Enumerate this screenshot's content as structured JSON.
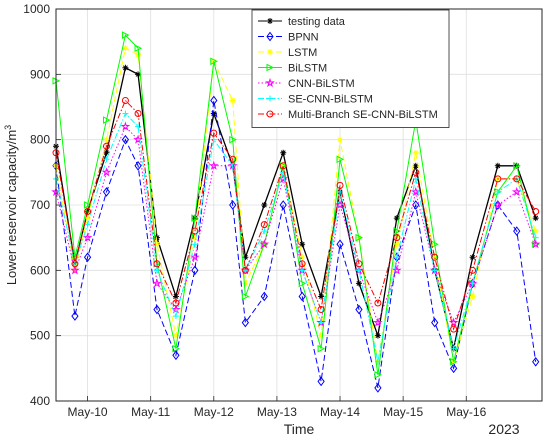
{
  "chart_data": {
    "type": "line",
    "title": "",
    "xlabel": "Time",
    "ylabel": "Lower reservoir capacity/m",
    "ylabel_superscript": "3",
    "year_label": "2023",
    "xlim": [
      0,
      7.7
    ],
    "ylim": [
      400,
      1000
    ],
    "xticks": [
      0.5,
      1.5,
      2.5,
      3.5,
      4.5,
      5.5,
      6.5
    ],
    "xtick_labels": [
      "May-10",
      "May-11",
      "May-12",
      "May-13",
      "May-14",
      "May-15",
      "May-16"
    ],
    "yticks": [
      400,
      500,
      600,
      700,
      800,
      900,
      1000
    ],
    "ytick_labels": [
      "400",
      "500",
      "600",
      "700",
      "800",
      "900",
      "1000"
    ],
    "grid": true,
    "legend_position": "top-right",
    "x": [
      0,
      0.3,
      0.5,
      0.8,
      1.1,
      1.3,
      1.6,
      1.9,
      2.2,
      2.5,
      2.8,
      3.0,
      3.3,
      3.6,
      3.9,
      4.2,
      4.5,
      4.8,
      5.1,
      5.4,
      5.7,
      6.0,
      6.3,
      6.6,
      7.0,
      7.3,
      7.6
    ],
    "series": [
      {
        "name": "testing data",
        "color": "#000000",
        "style": "solid",
        "marker": "asterisk",
        "values": [
          790,
          610,
          690,
          780,
          910,
          900,
          650,
          560,
          680,
          840,
          760,
          620,
          700,
          780,
          640,
          560,
          720,
          580,
          500,
          680,
          760,
          600,
          480,
          620,
          760,
          760,
          680
        ]
      },
      {
        "name": "BPNN",
        "color": "#0000ff",
        "style": "dashed",
        "marker": "diamond",
        "values": [
          760,
          530,
          620,
          720,
          800,
          760,
          540,
          470,
          600,
          860,
          700,
          520,
          560,
          700,
          560,
          430,
          640,
          540,
          420,
          620,
          700,
          520,
          450,
          580,
          700,
          660,
          460
        ]
      },
      {
        "name": "LSTM",
        "color": "#ffff00",
        "style": "dashed",
        "marker": "asterisk",
        "values": [
          760,
          600,
          680,
          800,
          940,
          930,
          640,
          500,
          650,
          920,
          860,
          580,
          640,
          760,
          620,
          500,
          800,
          650,
          460,
          640,
          780,
          620,
          460,
          560,
          740,
          740,
          660
        ]
      },
      {
        "name": "BiLSTM",
        "color": "#00ff00",
        "style": "solid",
        "marker": "triangle-right",
        "values": [
          890,
          620,
          700,
          830,
          960,
          940,
          610,
          480,
          680,
          920,
          800,
          560,
          640,
          760,
          580,
          480,
          770,
          650,
          440,
          660,
          830,
          640,
          460,
          580,
          720,
          760,
          640
        ]
      },
      {
        "name": "CNN-BiLSTM",
        "color": "#ff00ff",
        "style": "dotted",
        "marker": "star",
        "values": [
          720,
          600,
          650,
          750,
          820,
          800,
          580,
          540,
          620,
          760,
          760,
          600,
          640,
          740,
          600,
          520,
          700,
          600,
          520,
          600,
          720,
          600,
          520,
          580,
          700,
          720,
          640
        ]
      },
      {
        "name": "SE-CNN-BiLSTM",
        "color": "#00ffff",
        "style": "dashdot",
        "marker": "plus",
        "values": [
          740,
          610,
          670,
          770,
          840,
          820,
          600,
          530,
          640,
          800,
          760,
          600,
          660,
          750,
          600,
          520,
          720,
          600,
          460,
          620,
          740,
          600,
          480,
          580,
          720,
          740,
          650
        ]
      },
      {
        "name": "Multi-Branch SE-CNN-BiLSTM",
        "color": "#ff0000",
        "style": "dashdot",
        "marker": "circle",
        "values": [
          780,
          610,
          690,
          790,
          860,
          840,
          610,
          550,
          660,
          810,
          770,
          600,
          670,
          760,
          610,
          540,
          730,
          610,
          550,
          650,
          750,
          620,
          510,
          600,
          740,
          740,
          690
        ]
      }
    ]
  }
}
